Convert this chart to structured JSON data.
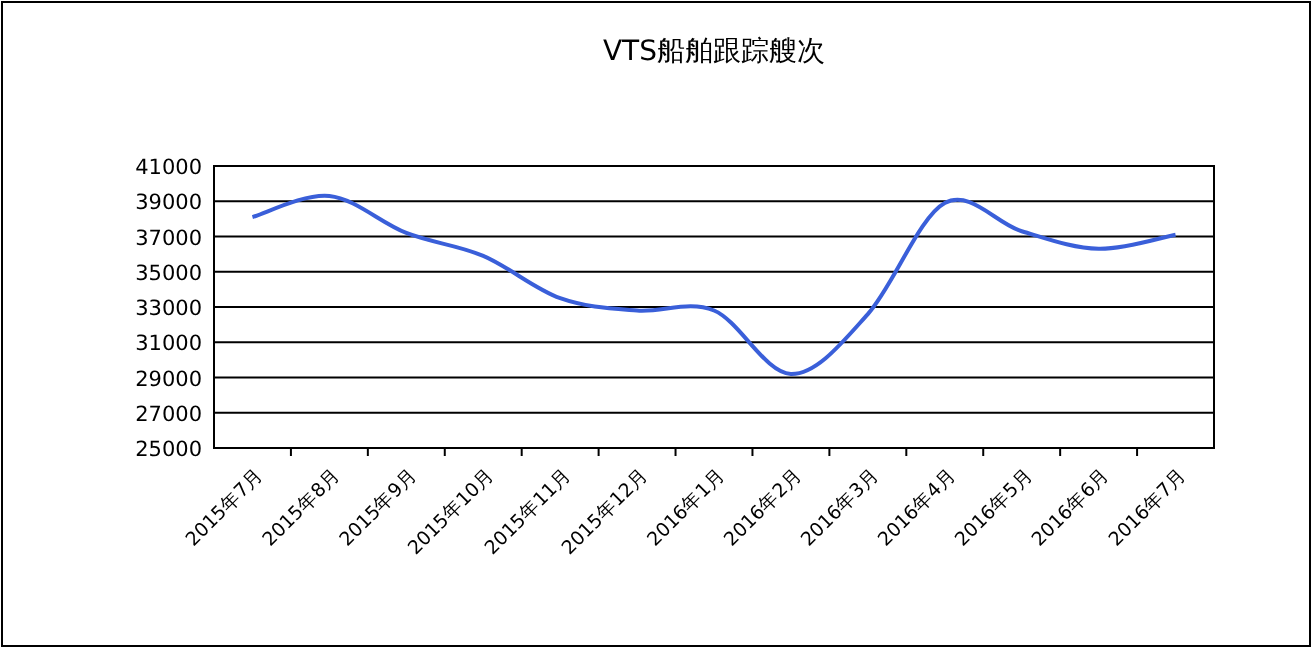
{
  "chart_data": {
    "type": "line",
    "title": "VTS船舶跟踪艘次",
    "categories": [
      "2015年7月",
      "2015年8月",
      "2015年9月",
      "2015年10月",
      "2015年11月",
      "2015年12月",
      "2016年1月",
      "2016年2月",
      "2016年3月",
      "2016年4月",
      "2016年5月",
      "2016年6月",
      "2016年7月"
    ],
    "series": [
      {
        "color": "#3a5fd9",
        "values": [
          38100,
          39300,
          37200,
          35900,
          33500,
          32800,
          32800,
          29200,
          32600,
          38900,
          37300,
          36300,
          37100
        ]
      }
    ],
    "ylim": [
      25000,
      41000
    ],
    "yticks": [
      25000,
      27000,
      29000,
      31000,
      33000,
      35000,
      37000,
      39000,
      41000
    ],
    "grid": "y",
    "marker": "none",
    "line_style": "solid"
  }
}
